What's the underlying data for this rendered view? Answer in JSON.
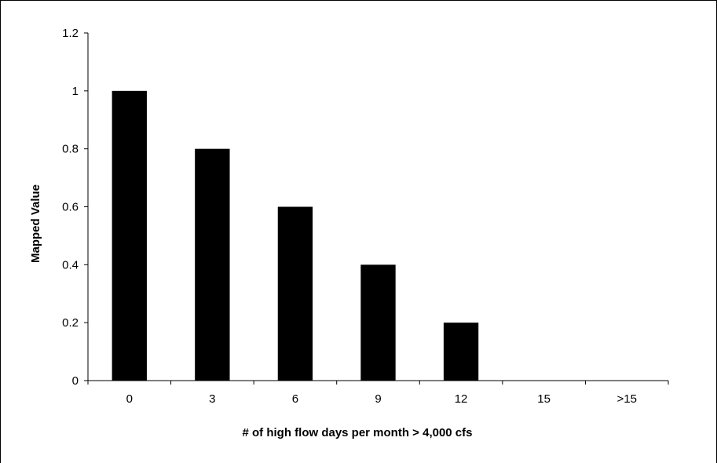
{
  "chart_data": {
    "type": "bar",
    "title": "",
    "xlabel": "# of high flow days per month > 4,000 cfs",
    "ylabel": "Mapped Value",
    "categories": [
      "0",
      "3",
      "6",
      "9",
      "12",
      "15",
      ">15"
    ],
    "values": [
      1.0,
      0.8,
      0.6,
      0.4,
      0.2,
      0,
      0
    ],
    "ylim": [
      0,
      1.2
    ],
    "yticks": [
      0,
      0.2,
      0.4,
      0.6,
      0.8,
      1,
      1.2
    ],
    "ytick_labels": [
      "0",
      "0.2",
      "0.4",
      "0.6",
      "0.8",
      "1",
      "1.2"
    ],
    "grid": false,
    "legend": "none",
    "bar_color": "#000000"
  }
}
